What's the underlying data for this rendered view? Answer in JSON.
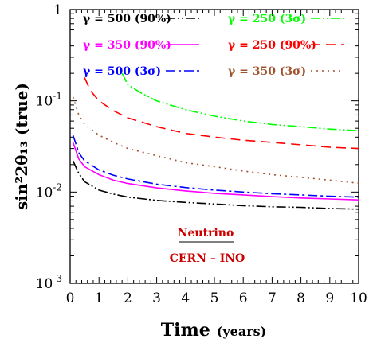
{
  "chart_data": {
    "type": "line",
    "xlabel": "Time",
    "xlabel_unit": "(years)",
    "ylabel": "sin²2θ₁₃ (true)",
    "xlim": [
      0,
      10
    ],
    "ylim": [
      0.001,
      1
    ],
    "yscale": "log",
    "x_ticks": [
      "0",
      "1",
      "2",
      "3",
      "4",
      "5",
      "6",
      "7",
      "8",
      "9",
      "10"
    ],
    "y_ticks": [
      {
        "base": "10",
        "exp": "-3",
        "value": 0.001
      },
      {
        "base": "10",
        "exp": "-2",
        "value": 0.01
      },
      {
        "base": "10",
        "exp": "-1",
        "value": 0.1
      },
      {
        "base": "1",
        "exp": "",
        "value": 1
      }
    ],
    "annotation": {
      "title": "Neutrino",
      "subtitle": "CERN – INO"
    },
    "series": [
      {
        "name": "γ = 500 (90%)",
        "color": "#000000",
        "dash": "dashdotdot",
        "x": [
          0.1,
          0.3,
          0.5,
          1,
          1.5,
          2,
          3,
          4,
          5,
          6,
          7,
          8,
          9,
          10
        ],
        "y": [
          0.022,
          0.016,
          0.013,
          0.0105,
          0.0095,
          0.0088,
          0.0081,
          0.0077,
          0.0074,
          0.0071,
          0.0069,
          0.0068,
          0.0066,
          0.0065
        ]
      },
      {
        "name": "γ = 350 (90%)",
        "color": "#ff00ff",
        "dash": "solid",
        "x": [
          0.1,
          0.3,
          0.5,
          1,
          1.5,
          2,
          3,
          4,
          5,
          6,
          7,
          8,
          9,
          10
        ],
        "y": [
          0.035,
          0.023,
          0.019,
          0.0155,
          0.0135,
          0.0124,
          0.0111,
          0.0103,
          0.0097,
          0.0093,
          0.0089,
          0.0086,
          0.0084,
          0.0082
        ]
      },
      {
        "name": "γ = 500 (3σ)",
        "color": "#0000ff",
        "dash": "dashdot",
        "x": [
          0.1,
          0.3,
          0.5,
          1,
          1.5,
          2,
          3,
          4,
          5,
          6,
          7,
          8,
          9,
          10
        ],
        "y": [
          0.042,
          0.027,
          0.022,
          0.0175,
          0.0153,
          0.0139,
          0.0122,
          0.0112,
          0.0105,
          0.01,
          0.0096,
          0.0093,
          0.009,
          0.0088
        ]
      },
      {
        "name": "γ = 250 (3σ)",
        "color": "#00ff00",
        "dash": "dashdotdot",
        "x": [
          1.8,
          2,
          2.5,
          3,
          4,
          5,
          6,
          7,
          8,
          9,
          10
        ],
        "y": [
          0.2,
          0.15,
          0.12,
          0.1,
          0.08,
          0.068,
          0.06,
          0.055,
          0.052,
          0.049,
          0.047
        ]
      },
      {
        "name": "γ = 250 (90%)",
        "color": "#ff0000",
        "dash": "dashed",
        "x": [
          0.5,
          0.7,
          1,
          1.5,
          2,
          3,
          4,
          5,
          6,
          7,
          8,
          9,
          10
        ],
        "y": [
          0.18,
          0.13,
          0.1,
          0.078,
          0.065,
          0.052,
          0.044,
          0.04,
          0.037,
          0.035,
          0.033,
          0.031,
          0.03
        ]
      },
      {
        "name": "γ = 350 (3σ)",
        "color": "#a0522d",
        "dash": "dotted",
        "x": [
          0.1,
          0.3,
          0.5,
          1,
          1.5,
          2,
          3,
          4,
          5,
          6,
          7,
          8,
          9,
          10
        ],
        "y": [
          0.11,
          0.07,
          0.055,
          0.042,
          0.035,
          0.03,
          0.025,
          0.021,
          0.019,
          0.017,
          0.0155,
          0.0145,
          0.0135,
          0.0125
        ]
      }
    ]
  }
}
